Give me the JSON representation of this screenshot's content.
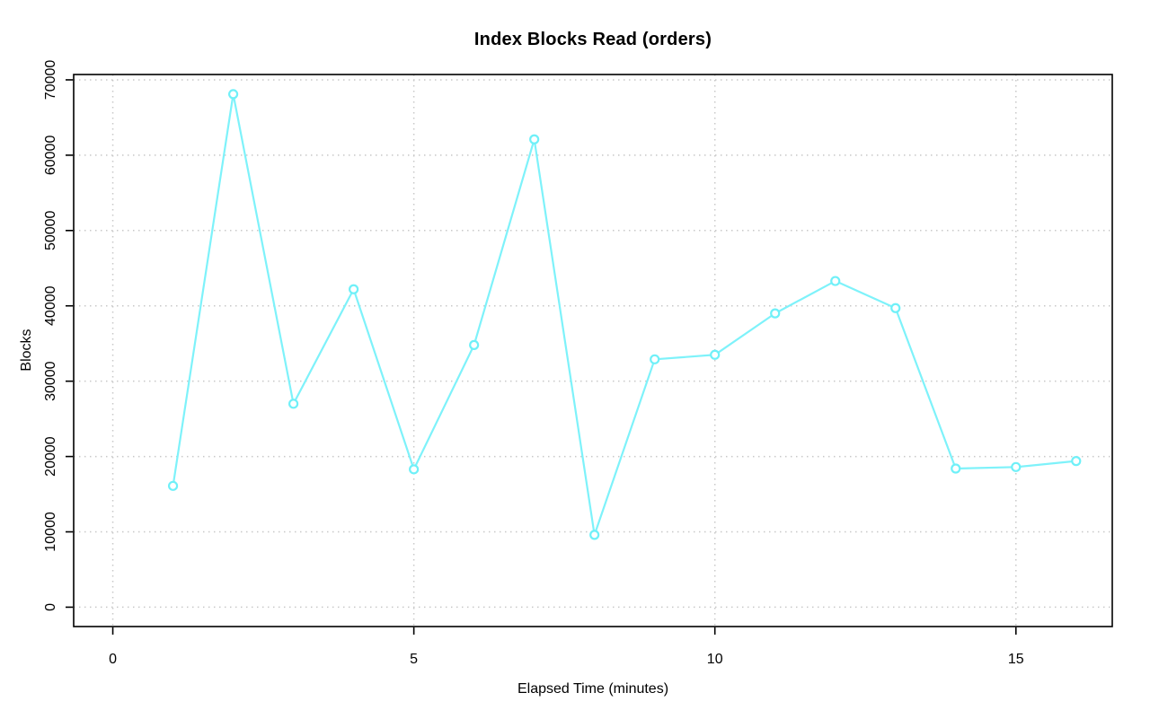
{
  "chart_data": {
    "type": "line",
    "title": "Index Blocks Read (orders)",
    "xlabel": "Elapsed Time (minutes)",
    "ylabel": "Blocks",
    "x": [
      1,
      2,
      3,
      4,
      5,
      6,
      7,
      8,
      9,
      10,
      11,
      12,
      13,
      14,
      15,
      16
    ],
    "series": [
      {
        "name": "orders",
        "values": [
          16100,
          68100,
          27000,
          42200,
          18300,
          34800,
          62100,
          9600,
          32900,
          33500,
          39000,
          43300,
          39700,
          18400,
          18600,
          19400
        ]
      }
    ],
    "xticks": [
      0,
      5,
      10,
      15
    ],
    "yticks": [
      0,
      10000,
      20000,
      30000,
      40000,
      50000,
      60000,
      70000
    ],
    "xtick_labels": [
      "0",
      "5",
      "10",
      "15"
    ],
    "ytick_labels": [
      "0",
      "10000",
      "20000",
      "30000",
      "40000",
      "50000",
      "60000",
      "70000"
    ],
    "xlim": [
      -0.65,
      16.6
    ],
    "ylim": [
      -2570,
      70710
    ],
    "grid": "dotted",
    "legend": "none",
    "marker": "open-circle",
    "colors": {
      "line": "#7ef2fa",
      "marker": "#6ff0f8",
      "grid": "#c8c8c8",
      "axis": "#000000",
      "background": "#ffffff"
    }
  }
}
